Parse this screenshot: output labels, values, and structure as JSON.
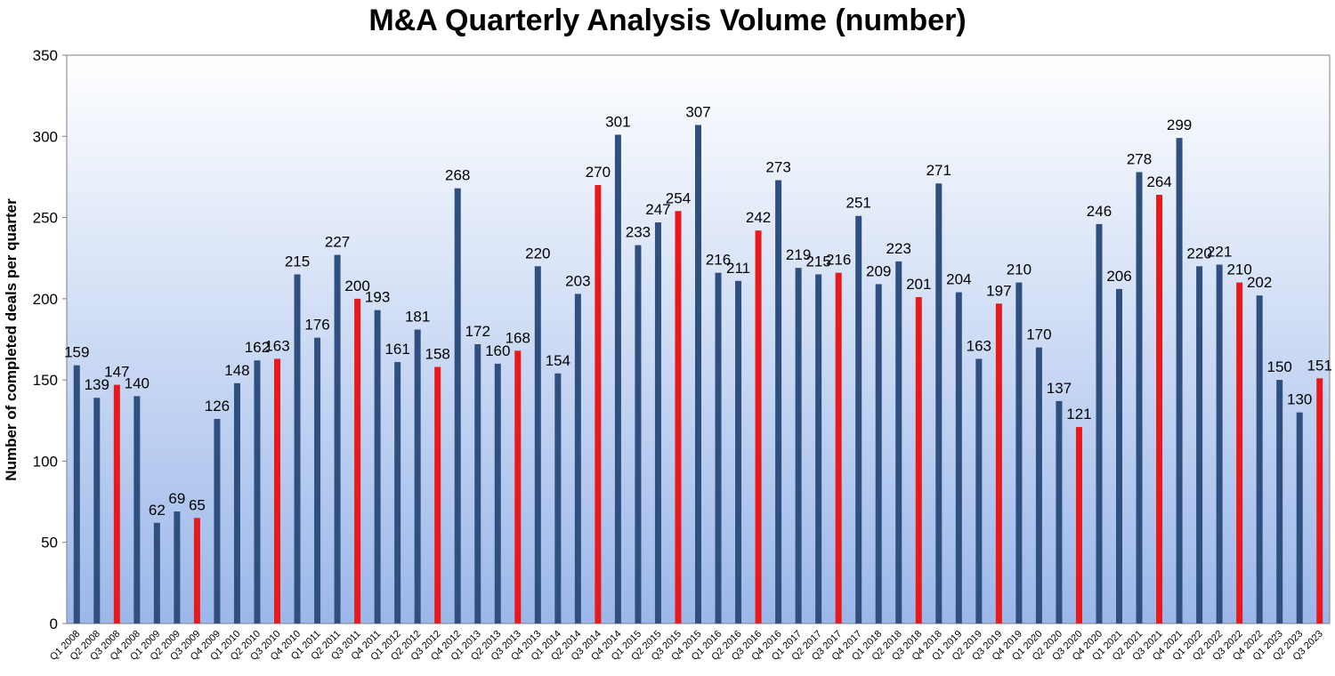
{
  "chart_data": {
    "type": "bar",
    "title": "M&A Quarterly Analysis Volume (number)",
    "xlabel": "",
    "ylabel": "Number of completed deals per quarter",
    "ylim": [
      0,
      350
    ],
    "yticks": [
      0,
      50,
      100,
      150,
      200,
      250,
      300,
      350
    ],
    "grid": false,
    "categories": [
      "Q1 2008",
      "Q2 2008",
      "Q3 2008",
      "Q4 2008",
      "Q1 2009",
      "Q2 2009",
      "Q3 2009",
      "Q4 2009",
      "Q1 2010",
      "Q2 2010",
      "Q3 2010",
      "Q4 2010",
      "Q1 2011",
      "Q2 2011",
      "Q3 2011",
      "Q4 2011",
      "Q1 2012",
      "Q2 2012",
      "Q3 2012",
      "Q4 2012",
      "Q1 2013",
      "Q2 2013",
      "Q3 2013",
      "Q4 2013",
      "Q1 2014",
      "Q2 2014",
      "Q3 2014",
      "Q4 2014",
      "Q1 2015",
      "Q2 2015",
      "Q3 2015",
      "Q4 2015",
      "Q1 2016",
      "Q2 2016",
      "Q3 2016",
      "Q4 2016",
      "Q1 2017",
      "Q2 2017",
      "Q3 2017",
      "Q4 2017",
      "Q1 2018",
      "Q2 2018",
      "Q3 2018",
      "Q4 2018",
      "Q1 2019",
      "Q2 2019",
      "Q3 2019",
      "Q4 2019",
      "Q1 2020",
      "Q2 2020",
      "Q3 2020",
      "Q4 2020",
      "Q1 2021",
      "Q2 2021",
      "Q3 2021",
      "Q4 2021",
      "Q1 2022",
      "Q2 2022",
      "Q3 2022",
      "Q4 2022",
      "Q1 2023",
      "Q2 2023",
      "Q3 2023"
    ],
    "values": [
      159,
      139,
      147,
      140,
      62,
      69,
      65,
      126,
      148,
      162,
      163,
      215,
      176,
      227,
      200,
      193,
      161,
      181,
      158,
      268,
      172,
      160,
      168,
      220,
      154,
      203,
      270,
      301,
      233,
      247,
      254,
      307,
      216,
      211,
      242,
      273,
      219,
      215,
      216,
      251,
      209,
      223,
      201,
      271,
      204,
      163,
      197,
      210,
      170,
      137,
      121,
      246,
      206,
      278,
      264,
      299,
      220,
      221,
      210,
      202,
      150,
      130,
      151
    ],
    "highlight_category_prefix": "Q3",
    "colors": {
      "bar": "#2f4f7f",
      "bar_highlight": "#e8191a",
      "plot_bg_top": "#ffffff",
      "plot_bg_bottom": "#9bb7ea",
      "axis": "#7f7f7f"
    }
  }
}
